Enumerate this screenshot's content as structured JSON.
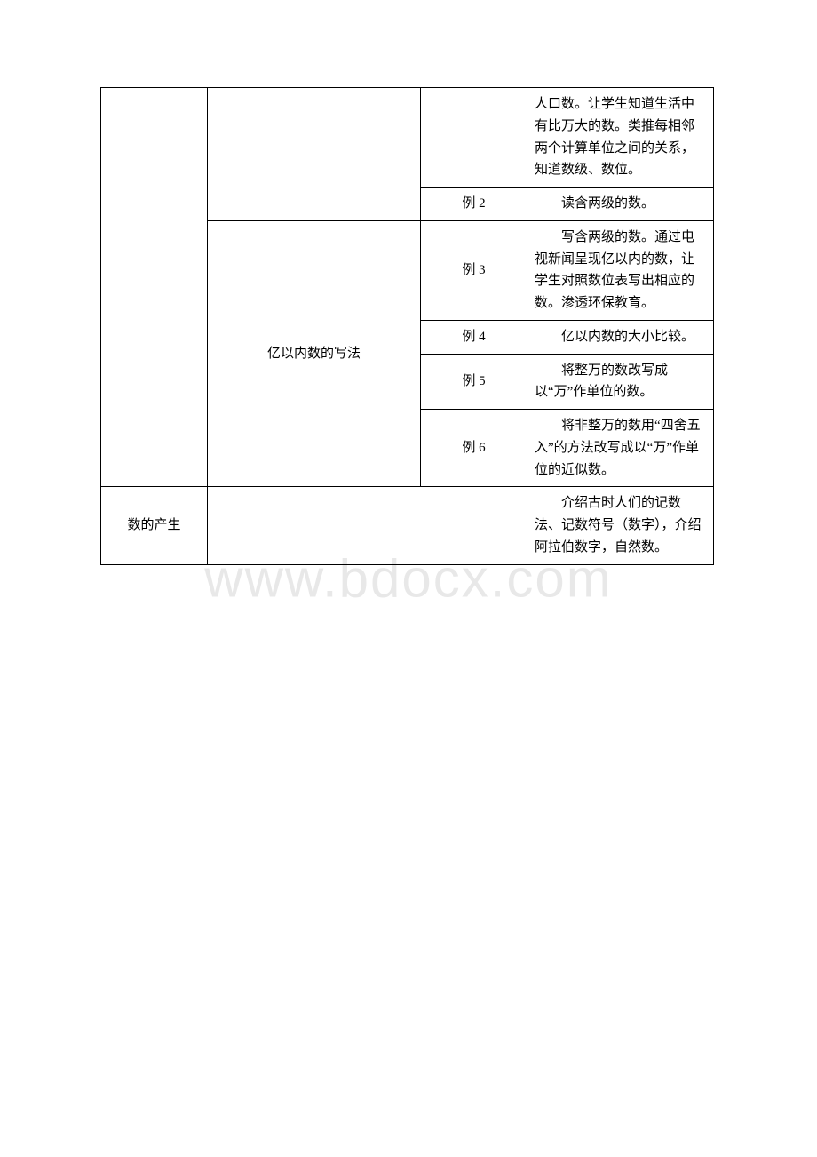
{
  "watermark": "www.bdocx.com",
  "table": {
    "col1_row2": "数的产生",
    "col2_row1": "亿以内数的写法",
    "rows": [
      {
        "ex": "",
        "desc": "人口数。让学生知道生活中有比万大的数。类推每相邻两个计算单位之间的关系，知道数级、数位。"
      },
      {
        "ex": "例 2",
        "desc": "　　读含两级的数。"
      },
      {
        "ex": "例 3",
        "desc": "　　写含两级的数。通过电视新闻呈现亿以内的数，让学生对照数位表写出相应的数。渗透环保教育。"
      },
      {
        "ex": "例 4",
        "desc": "　　亿以内数的大小比较。"
      },
      {
        "ex": "例 5",
        "desc": "　　将整万的数改写成以“万”作单位的数。"
      },
      {
        "ex": "例 6",
        "desc": "　　将非整万的数用“四舍五入”的方法改写成以“万”作单位的近似数。"
      },
      {
        "ex": "",
        "desc": "　　介绍古时人们的记数法、记数符号（数字），介绍阿拉伯数字，自然数。"
      }
    ]
  }
}
